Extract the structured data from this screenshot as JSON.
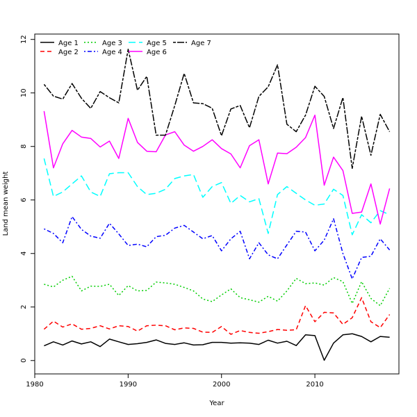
{
  "chart_data": {
    "type": "line",
    "title": "",
    "xlabel": "Year",
    "ylabel": "Land mean weight",
    "xlim": [
      1980,
      2019
    ],
    "ylim": [
      -0.5,
      12.2
    ],
    "xticks": [
      1980,
      1990,
      2000,
      2010
    ],
    "yticks": [
      0,
      2,
      4,
      6,
      8,
      10,
      12
    ],
    "grid": false,
    "legend_position": "top-left",
    "x": [
      1981,
      1982,
      1983,
      1984,
      1985,
      1986,
      1987,
      1988,
      1989,
      1990,
      1991,
      1992,
      1993,
      1994,
      1995,
      1996,
      1997,
      1998,
      1999,
      2000,
      2001,
      2002,
      2003,
      2004,
      2005,
      2006,
      2007,
      2008,
      2009,
      2010,
      2011,
      2012,
      2013,
      2014,
      2015,
      2016,
      2017,
      2018
    ],
    "series": [
      {
        "name": "Age 1",
        "color": "#000000",
        "dash": "solid",
        "values": [
          0.55,
          0.7,
          0.58,
          0.73,
          0.62,
          0.7,
          0.52,
          0.8,
          0.7,
          0.6,
          0.63,
          0.68,
          0.77,
          0.64,
          0.6,
          0.66,
          0.58,
          0.59,
          0.68,
          0.68,
          0.65,
          0.66,
          0.65,
          0.6,
          0.76,
          0.65,
          0.72,
          0.56,
          0.96,
          0.93,
          0.01,
          0.65,
          0.96,
          1.0,
          0.9,
          0.7,
          0.9,
          0.87
        ]
      },
      {
        "name": "Age 2",
        "color": "#ff0000",
        "dash": "dashed",
        "values": [
          1.17,
          1.47,
          1.25,
          1.37,
          1.17,
          1.2,
          1.3,
          1.18,
          1.3,
          1.27,
          1.1,
          1.3,
          1.32,
          1.3,
          1.15,
          1.22,
          1.2,
          1.06,
          1.05,
          1.27,
          0.98,
          1.12,
          1.05,
          1.02,
          1.08,
          1.16,
          1.13,
          1.15,
          2.05,
          1.45,
          1.8,
          1.78,
          1.35,
          1.6,
          2.35,
          1.45,
          1.23,
          1.72
        ]
      },
      {
        "name": "Age 3",
        "color": "#00cd00",
        "dash": "dotted",
        "values": [
          2.85,
          2.75,
          3.0,
          3.15,
          2.6,
          2.78,
          2.77,
          2.85,
          2.43,
          2.8,
          2.6,
          2.62,
          2.93,
          2.9,
          2.85,
          2.73,
          2.6,
          2.3,
          2.2,
          2.45,
          2.68,
          2.35,
          2.27,
          2.18,
          2.4,
          2.22,
          2.6,
          3.07,
          2.87,
          2.9,
          2.82,
          3.1,
          2.95,
          2.13,
          2.95,
          2.32,
          2.05,
          2.7
        ]
      },
      {
        "name": "Age 4",
        "color": "#0000ff",
        "dash": "dashdot",
        "values": [
          4.92,
          4.75,
          4.4,
          5.38,
          4.9,
          4.65,
          4.57,
          5.13,
          4.73,
          4.3,
          4.35,
          4.25,
          4.63,
          4.68,
          4.95,
          5.05,
          4.8,
          4.55,
          4.67,
          4.1,
          4.55,
          4.83,
          3.8,
          4.4,
          3.95,
          3.8,
          4.32,
          4.83,
          4.8,
          4.1,
          4.5,
          5.3,
          4.0,
          3.05,
          3.85,
          3.9,
          4.55,
          4.13
        ]
      },
      {
        "name": "Age 5",
        "color": "#00ffff",
        "dash": "longdash",
        "values": [
          7.55,
          6.13,
          6.3,
          6.6,
          6.9,
          6.3,
          6.13,
          6.98,
          7.02,
          7.02,
          6.5,
          6.2,
          6.25,
          6.4,
          6.8,
          6.9,
          6.95,
          6.1,
          6.5,
          6.65,
          5.87,
          6.17,
          5.93,
          6.05,
          4.75,
          6.2,
          6.5,
          6.25,
          6.0,
          5.8,
          5.85,
          6.4,
          6.17,
          4.7,
          5.45,
          5.15,
          5.6,
          5.45
        ]
      },
      {
        "name": "Age 6",
        "color": "#ff00ff",
        "dash": "solid",
        "values": [
          9.32,
          7.2,
          8.1,
          8.6,
          8.35,
          8.3,
          7.98,
          8.2,
          7.55,
          9.05,
          8.15,
          7.82,
          7.8,
          8.43,
          8.55,
          8.05,
          7.82,
          8.0,
          8.25,
          7.92,
          7.72,
          7.2,
          8.03,
          8.25,
          6.6,
          7.75,
          7.73,
          7.97,
          8.33,
          9.17,
          6.55,
          7.6,
          7.1,
          5.5,
          5.55,
          6.6,
          5.1,
          6.43
        ]
      },
      {
        "name": "Age 7",
        "color": "#000000",
        "dash": "twodash",
        "values": [
          10.32,
          9.88,
          9.77,
          10.35,
          9.8,
          9.42,
          10.05,
          9.82,
          9.63,
          11.63,
          10.1,
          10.62,
          8.42,
          8.42,
          9.53,
          10.73,
          9.63,
          9.6,
          9.43,
          8.4,
          9.4,
          9.53,
          8.7,
          9.87,
          10.23,
          11.05,
          8.83,
          8.55,
          9.17,
          10.25,
          9.87,
          8.67,
          9.83,
          7.18,
          9.13,
          7.67,
          9.2,
          8.55
        ]
      }
    ]
  }
}
